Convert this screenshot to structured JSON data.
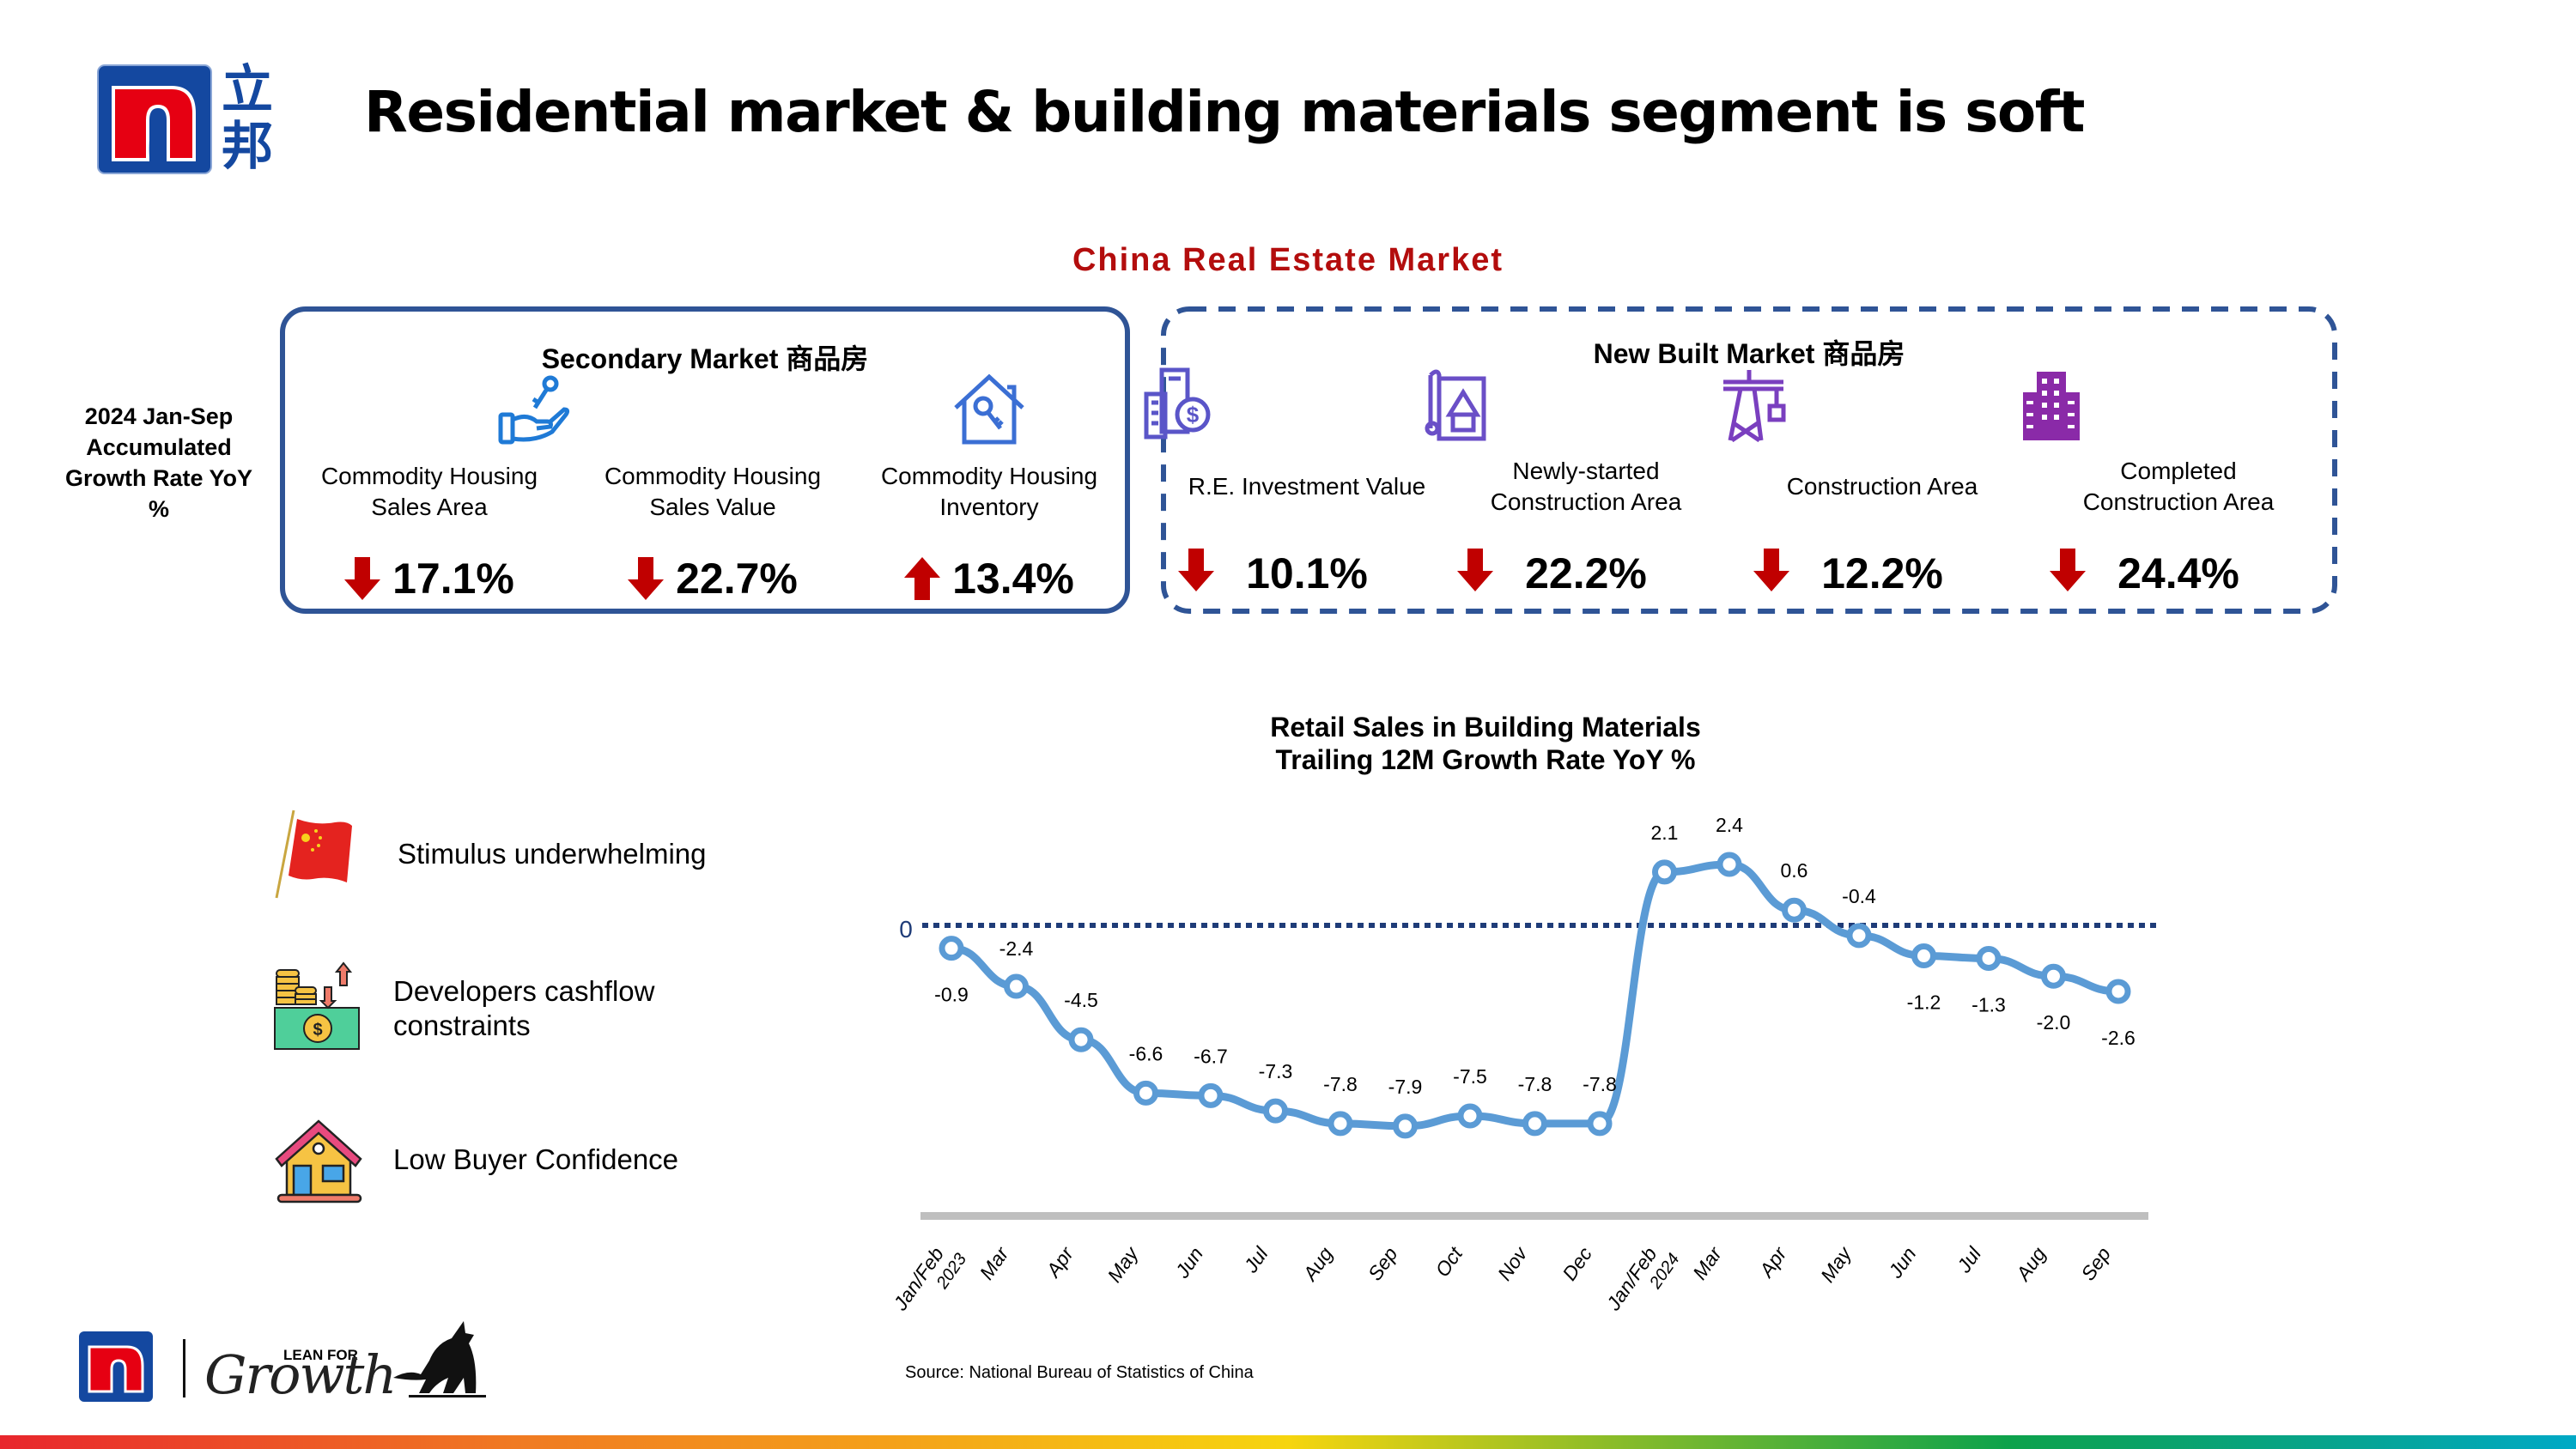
{
  "header": {
    "title": "Residential market & building materials segment is soft",
    "logo_cn": "立邦",
    "logo_letter": "n"
  },
  "section_title": "China Real Estate Market",
  "side_label": [
    "2024 Jan-Sep",
    "Accumulated",
    "Growth Rate YoY",
    "%"
  ],
  "secondary_market": {
    "title": "Secondary Market  商品房",
    "metrics": [
      {
        "label_1": "Commodity Housing",
        "label_2": "Sales Area",
        "value": "17.1%",
        "direction": "down",
        "icon": "hand-key-icon"
      },
      {
        "label_1": "Commodity Housing",
        "label_2": "Sales Value",
        "value": "22.7%",
        "direction": "down",
        "icon": "none"
      },
      {
        "label_1": "Commodity Housing",
        "label_2": "Inventory",
        "value": "13.4%",
        "direction": "up",
        "icon": "house-key-icon"
      }
    ]
  },
  "new_built_market": {
    "title": "New Built Market  商品房",
    "metrics": [
      {
        "label_1": "R.E. Investment Value",
        "label_2": "",
        "value": "10.1%",
        "direction": "down",
        "icon": "building-dollar-icon"
      },
      {
        "label_1": "Newly-started",
        "label_2": "Construction Area",
        "value": "22.2%",
        "direction": "down",
        "icon": "blueprint-icon"
      },
      {
        "label_1": "Construction Area",
        "label_2": "",
        "value": "12.2%",
        "direction": "down",
        "icon": "crane-icon"
      },
      {
        "label_1": "Completed",
        "label_2": "Construction Area",
        "value": "24.4%",
        "direction": "down",
        "icon": "office-building-icon"
      }
    ]
  },
  "drivers": [
    {
      "text_1": "Stimulus underwhelming",
      "text_2": "",
      "icon": "china-flag-icon"
    },
    {
      "text_1": "Developers cashflow",
      "text_2": "constraints",
      "icon": "cash-coins-icon"
    },
    {
      "text_1": "Low Buyer Confidence",
      "text_2": "",
      "icon": "house-icon"
    }
  ],
  "colors": {
    "accent_red": "#b30d0d",
    "arrow_red": "#c00000",
    "box_blue": "#2f5496",
    "line_blue": "#5b9bd5",
    "zero_line": "#1f3c78"
  },
  "chart_data": {
    "type": "line",
    "title": "Retail Sales in Building Materials",
    "subtitle": "Trailing 12M Growth Rate YoY %",
    "xlabel": "",
    "ylabel": "",
    "reference_line": {
      "value": 0,
      "label": "0",
      "style": "dotted"
    },
    "categories": [
      "Jan/Feb 2023",
      "Mar",
      "Apr",
      "May",
      "Jun",
      "Jul",
      "Aug",
      "Sep",
      "Oct",
      "Nov",
      "Dec",
      "Jan/Feb 2024",
      "Mar",
      "Apr",
      "May",
      "Jun",
      "Jul",
      "Aug",
      "Sep"
    ],
    "tick_labels": [
      [
        "Jan/Feb",
        "2023"
      ],
      [
        "Mar"
      ],
      [
        "Apr"
      ],
      [
        "May"
      ],
      [
        "Jun"
      ],
      [
        "Jul"
      ],
      [
        "Aug"
      ],
      [
        "Sep"
      ],
      [
        "Oct"
      ],
      [
        "Nov"
      ],
      [
        "Dec"
      ],
      [
        "Jan/Feb",
        "2024"
      ],
      [
        "Mar"
      ],
      [
        "Apr"
      ],
      [
        "May"
      ],
      [
        "Jun"
      ],
      [
        "Jul"
      ],
      [
        "Aug"
      ],
      [
        "Sep"
      ]
    ],
    "series": [
      {
        "name": "Retail Sales in Building Materials YoY %",
        "values": [
          -0.9,
          -2.4,
          -4.5,
          -6.6,
          -6.7,
          -7.3,
          -7.8,
          -7.9,
          -7.5,
          -7.8,
          -7.8,
          2.1,
          2.4,
          0.6,
          -0.4,
          -1.2,
          -1.3,
          -2.0,
          -2.6
        ],
        "labels": [
          "-0.9",
          "-2.4",
          "-4.5",
          "-6.6",
          "-6.7",
          "-7.3",
          "-7.8",
          "-7.9",
          "-7.5",
          "-7.8",
          "-7.8",
          "2.1",
          "2.4",
          "0.6",
          "-0.4",
          "-1.2",
          "-1.3",
          "-2.0",
          "-2.6"
        ]
      }
    ],
    "ylim": [
      -8.5,
      3
    ],
    "grid": false,
    "legend": "none"
  },
  "source": "Source: National Bureau of Statistics of China",
  "footer": {
    "brand_small": "LEAN FOR",
    "brand_script": "Growth"
  }
}
